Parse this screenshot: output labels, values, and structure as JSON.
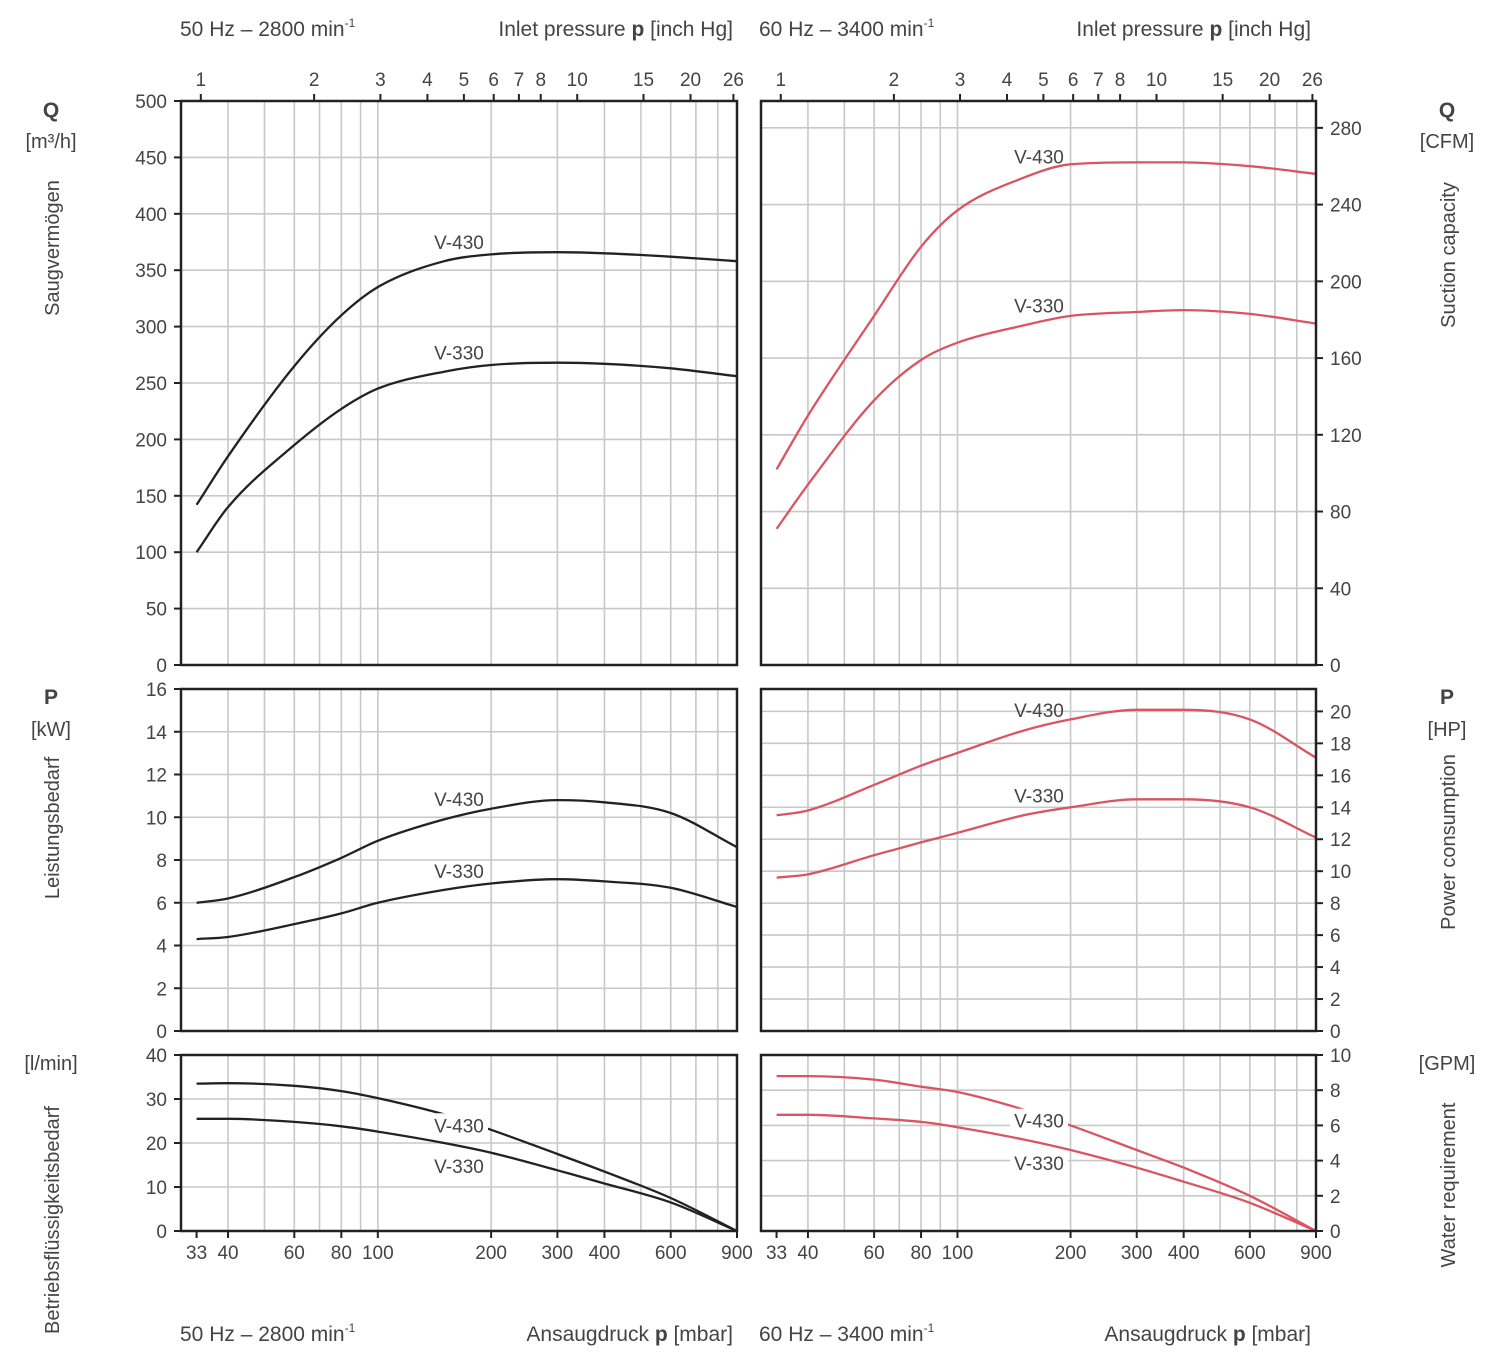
{
  "headers": {
    "left_freq": "50 Hz – 2800 min",
    "right_freq": "60 Hz – 3400 min",
    "freq_sup": "-1",
    "top_pressure_pre": "Inlet pressure ",
    "top_pressure_bold": "p",
    "top_pressure_unit": " [inch Hg]",
    "bottom_pressure_pre": "Ansaugdruck ",
    "bottom_pressure_bold": "p",
    "bottom_pressure_unit": " [mbar]"
  },
  "axes": {
    "q_symbol": "Q",
    "q_unit_left": "[m³/h]",
    "q_unit_right": "[CFM]",
    "q_title_left": "Saugvermögen",
    "q_title_right": "Suction capacity",
    "p_symbol": "P",
    "p_unit_left": "[kW]",
    "p_unit_right": "[HP]",
    "p_title_left": "Leistungsbedarf",
    "p_title_right": "Power consumption",
    "w_unit_left": "[l/min]",
    "w_unit_right": "[GPM]",
    "w_title_left": "Betriebsflüssigkeitsbedarf",
    "w_title_right": "Water requirement"
  },
  "colors": {
    "hz50": "#222222",
    "hz60": "#d95562",
    "grid": "#c8c8c8",
    "frame": "#222222",
    "text": "#444444"
  },
  "chart_data": {
    "type": "line",
    "x_scale": "log",
    "x_mbar_range": [
      30,
      900
    ],
    "x_mbar_ticks": [
      33,
      40,
      60,
      80,
      100,
      200,
      300,
      400,
      600,
      900
    ],
    "x_inhg_ticks": [
      1,
      2,
      3,
      4,
      5,
      6,
      7,
      8,
      10,
      15,
      20,
      26
    ],
    "x_inhg_to_mbar": 33.8639,
    "grid": true,
    "charts": [
      {
        "id": "q50",
        "quantity": "Q",
        "frequency": "50 Hz",
        "unit": "m³/h",
        "ylim": [
          0,
          500
        ],
        "yticks": [
          0,
          50,
          100,
          150,
          200,
          250,
          300,
          350,
          400,
          450,
          500
        ],
        "series": [
          {
            "name": "V-430",
            "points": [
              [
                33,
                142
              ],
              [
                40,
                185
              ],
              [
                60,
                265
              ],
              [
                80,
                310
              ],
              [
                100,
                335
              ],
              [
                150,
                358
              ],
              [
                200,
                364
              ],
              [
                300,
                366
              ],
              [
                400,
                365
              ],
              [
                600,
                362
              ],
              [
                900,
                358
              ]
            ]
          },
          {
            "name": "V-330",
            "points": [
              [
                33,
                100
              ],
              [
                40,
                140
              ],
              [
                60,
                195
              ],
              [
                80,
                227
              ],
              [
                100,
                245
              ],
              [
                150,
                260
              ],
              [
                200,
                266
              ],
              [
                300,
                268
              ],
              [
                400,
                267
              ],
              [
                600,
                263
              ],
              [
                900,
                256
              ]
            ]
          }
        ]
      },
      {
        "id": "q60",
        "quantity": "Q",
        "frequency": "60 Hz",
        "unit": "CFM",
        "ylim": [
          0,
          294
        ],
        "yticks": [
          0,
          40,
          80,
          120,
          160,
          200,
          240,
          280
        ],
        "series": [
          {
            "name": "V-430",
            "points": [
              [
                33,
                102
              ],
              [
                40,
                130
              ],
              [
                60,
                182
              ],
              [
                80,
                218
              ],
              [
                100,
                237
              ],
              [
                150,
                254
              ],
              [
                200,
                261
              ],
              [
                300,
                262
              ],
              [
                400,
                262
              ],
              [
                600,
                260
              ],
              [
                900,
                256
              ]
            ]
          },
          {
            "name": "V-330",
            "points": [
              [
                33,
                71
              ],
              [
                40,
                94
              ],
              [
                60,
                138
              ],
              [
                80,
                159
              ],
              [
                100,
                168
              ],
              [
                150,
                177
              ],
              [
                200,
                182
              ],
              [
                300,
                184
              ],
              [
                400,
                185
              ],
              [
                600,
                183
              ],
              [
                900,
                178
              ]
            ]
          }
        ]
      },
      {
        "id": "p50",
        "quantity": "P",
        "frequency": "50 Hz",
        "unit": "kW",
        "ylim": [
          0,
          16
        ],
        "yticks": [
          0,
          2,
          4,
          6,
          8,
          10,
          12,
          14,
          16
        ],
        "series": [
          {
            "name": "V-430",
            "points": [
              [
                33,
                6.0
              ],
              [
                40,
                6.2
              ],
              [
                60,
                7.2
              ],
              [
                80,
                8.1
              ],
              [
                100,
                8.9
              ],
              [
                150,
                9.9
              ],
              [
                200,
                10.4
              ],
              [
                300,
                10.8
              ],
              [
                400,
                10.7
              ],
              [
                600,
                10.2
              ],
              [
                900,
                8.6
              ]
            ]
          },
          {
            "name": "V-330",
            "points": [
              [
                33,
                4.3
              ],
              [
                40,
                4.4
              ],
              [
                60,
                5.0
              ],
              [
                80,
                5.5
              ],
              [
                100,
                6.0
              ],
              [
                150,
                6.6
              ],
              [
                200,
                6.9
              ],
              [
                300,
                7.1
              ],
              [
                400,
                7.0
              ],
              [
                600,
                6.7
              ],
              [
                900,
                5.8
              ]
            ]
          }
        ]
      },
      {
        "id": "p60",
        "quantity": "P",
        "frequency": "60 Hz",
        "unit": "HP",
        "ylim": [
          0,
          21.4
        ],
        "yticks": [
          0,
          2,
          4,
          6,
          8,
          10,
          12,
          14,
          16,
          18,
          20
        ],
        "series": [
          {
            "name": "V-430",
            "points": [
              [
                33,
                13.5
              ],
              [
                40,
                13.8
              ],
              [
                60,
                15.4
              ],
              [
                80,
                16.6
              ],
              [
                100,
                17.4
              ],
              [
                150,
                18.8
              ],
              [
                200,
                19.5
              ],
              [
                300,
                20.1
              ],
              [
                400,
                20.1
              ],
              [
                600,
                19.5
              ],
              [
                900,
                17.1
              ]
            ]
          },
          {
            "name": "V-330",
            "points": [
              [
                33,
                9.6
              ],
              [
                40,
                9.8
              ],
              [
                60,
                11.0
              ],
              [
                80,
                11.8
              ],
              [
                100,
                12.4
              ],
              [
                150,
                13.5
              ],
              [
                200,
                14.0
              ],
              [
                300,
                14.5
              ],
              [
                400,
                14.5
              ],
              [
                600,
                14.0
              ],
              [
                900,
                12.1
              ]
            ]
          }
        ]
      },
      {
        "id": "w50",
        "quantity": "W",
        "frequency": "50 Hz",
        "unit": "l/min",
        "ylim": [
          0,
          40
        ],
        "yticks": [
          0,
          10,
          20,
          30,
          40
        ],
        "series": [
          {
            "name": "V-430",
            "points": [
              [
                33,
                33.5
              ],
              [
                40,
                33.6
              ],
              [
                60,
                33.0
              ],
              [
                80,
                31.8
              ],
              [
                100,
                30.2
              ],
              [
                150,
                26.5
              ],
              [
                200,
                23.0
              ],
              [
                300,
                17.5
              ],
              [
                400,
                13.5
              ],
              [
                600,
                7.5
              ],
              [
                900,
                0
              ]
            ]
          },
          {
            "name": "V-330",
            "points": [
              [
                33,
                25.5
              ],
              [
                40,
                25.5
              ],
              [
                60,
                24.8
              ],
              [
                80,
                23.8
              ],
              [
                100,
                22.6
              ],
              [
                150,
                20.0
              ],
              [
                200,
                17.8
              ],
              [
                300,
                13.8
              ],
              [
                400,
                10.8
              ],
              [
                600,
                6.5
              ],
              [
                900,
                0
              ]
            ]
          }
        ]
      },
      {
        "id": "w60",
        "quantity": "W",
        "frequency": "60 Hz",
        "unit": "GPM",
        "ylim": [
          0,
          10
        ],
        "yticks": [
          0,
          2,
          4,
          6,
          8,
          10
        ],
        "series": [
          {
            "name": "V-430",
            "points": [
              [
                33,
                8.8
              ],
              [
                40,
                8.8
              ],
              [
                60,
                8.6
              ],
              [
                80,
                8.2
              ],
              [
                100,
                7.9
              ],
              [
                150,
                6.9
              ],
              [
                200,
                6.0
              ],
              [
                300,
                4.6
              ],
              [
                400,
                3.6
              ],
              [
                600,
                2.0
              ],
              [
                900,
                0
              ]
            ]
          },
          {
            "name": "V-330",
            "points": [
              [
                33,
                6.6
              ],
              [
                40,
                6.6
              ],
              [
                60,
                6.4
              ],
              [
                80,
                6.2
              ],
              [
                100,
                5.9
              ],
              [
                150,
                5.2
              ],
              [
                200,
                4.6
              ],
              [
                300,
                3.6
              ],
              [
                400,
                2.8
              ],
              [
                600,
                1.6
              ],
              [
                900,
                0
              ]
            ]
          }
        ]
      }
    ]
  }
}
